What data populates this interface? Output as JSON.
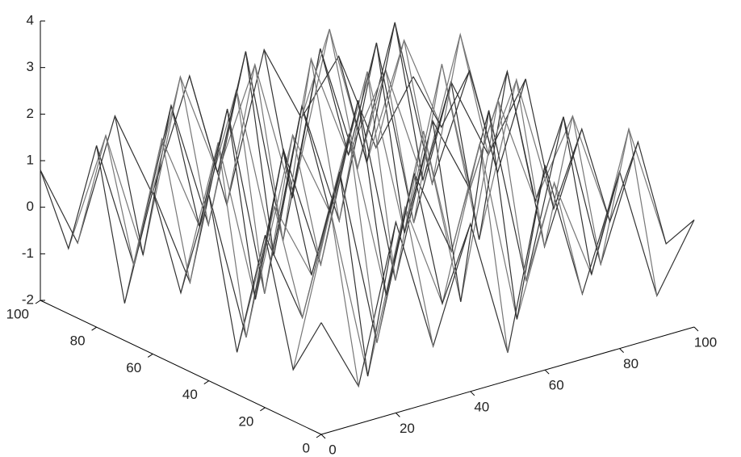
{
  "chart_data": {
    "type": "mesh",
    "x": [
      0,
      10,
      20,
      30,
      40,
      50,
      60,
      70,
      80,
      90,
      100
    ],
    "y": [
      0,
      10,
      20,
      30,
      40,
      50,
      60,
      70,
      80,
      90,
      100
    ],
    "z": [
      [
        0.4,
        -1.2,
        2.1,
        -0.8,
        1.6,
        -1.4,
        2.4,
        -0.6,
        1.8,
        -1.1,
        0.3
      ],
      [
        -0.9,
        2.3,
        -1.5,
        1.9,
        -0.4,
        2.8,
        -1.2,
        1.5,
        -0.7,
        2.2,
        -0.5
      ],
      [
        1.7,
        -0.3,
        2.6,
        -1.3,
        2.1,
        0.2,
        3.0,
        -0.9,
        2.4,
        -1.0,
        1.4
      ],
      [
        -1.1,
        1.8,
        0.1,
        2.9,
        -0.8,
        2.5,
        -1.4,
        2.7,
        0.3,
        1.9,
        -0.6
      ],
      [
        2.0,
        -1.3,
        2.5,
        -0.2,
        3.1,
        -1.0,
        2.2,
        0.5,
        2.8,
        -1.2,
        1.1
      ],
      [
        -0.4,
        2.6,
        -1.0,
        2.3,
        0.4,
        3.2,
        -0.5,
        2.9,
        -1.1,
        2.1,
        -0.9
      ],
      [
        1.5,
        -0.7,
        2.8,
        -1.4,
        2.4,
        -0.3,
        3.3,
        -0.8,
        2.0,
        0.2,
        1.6
      ],
      [
        -1.2,
        2.1,
        0.0,
        2.7,
        -1.1,
        2.9,
        0.6,
        2.2,
        -0.4,
        2.5,
        -0.7
      ],
      [
        1.9,
        -0.9,
        2.3,
        -0.5,
        3.0,
        -1.3,
        2.6,
        -0.2,
        2.7,
        -1.0,
        1.2
      ],
      [
        -0.6,
        1.6,
        -1.2,
        2.4,
        0.1,
        2.2,
        -0.9,
        2.5,
        -0.6,
        1.8,
        -0.3
      ],
      [
        0.8,
        -1.0,
        1.5,
        -0.4,
        1.9,
        -1.1,
        2.0,
        0.3,
        1.4,
        -0.8,
        0.5
      ]
    ],
    "color": "#333333",
    "xlim": [
      0,
      100
    ],
    "ylim": [
      0,
      100
    ],
    "zlim": [
      -2,
      4
    ],
    "xticks": [
      0,
      20,
      40,
      60,
      80,
      100
    ],
    "yticks": [
      0,
      20,
      40,
      60,
      80,
      100
    ],
    "zticks": [
      -2,
      -1,
      0,
      1,
      2,
      3,
      4
    ]
  }
}
